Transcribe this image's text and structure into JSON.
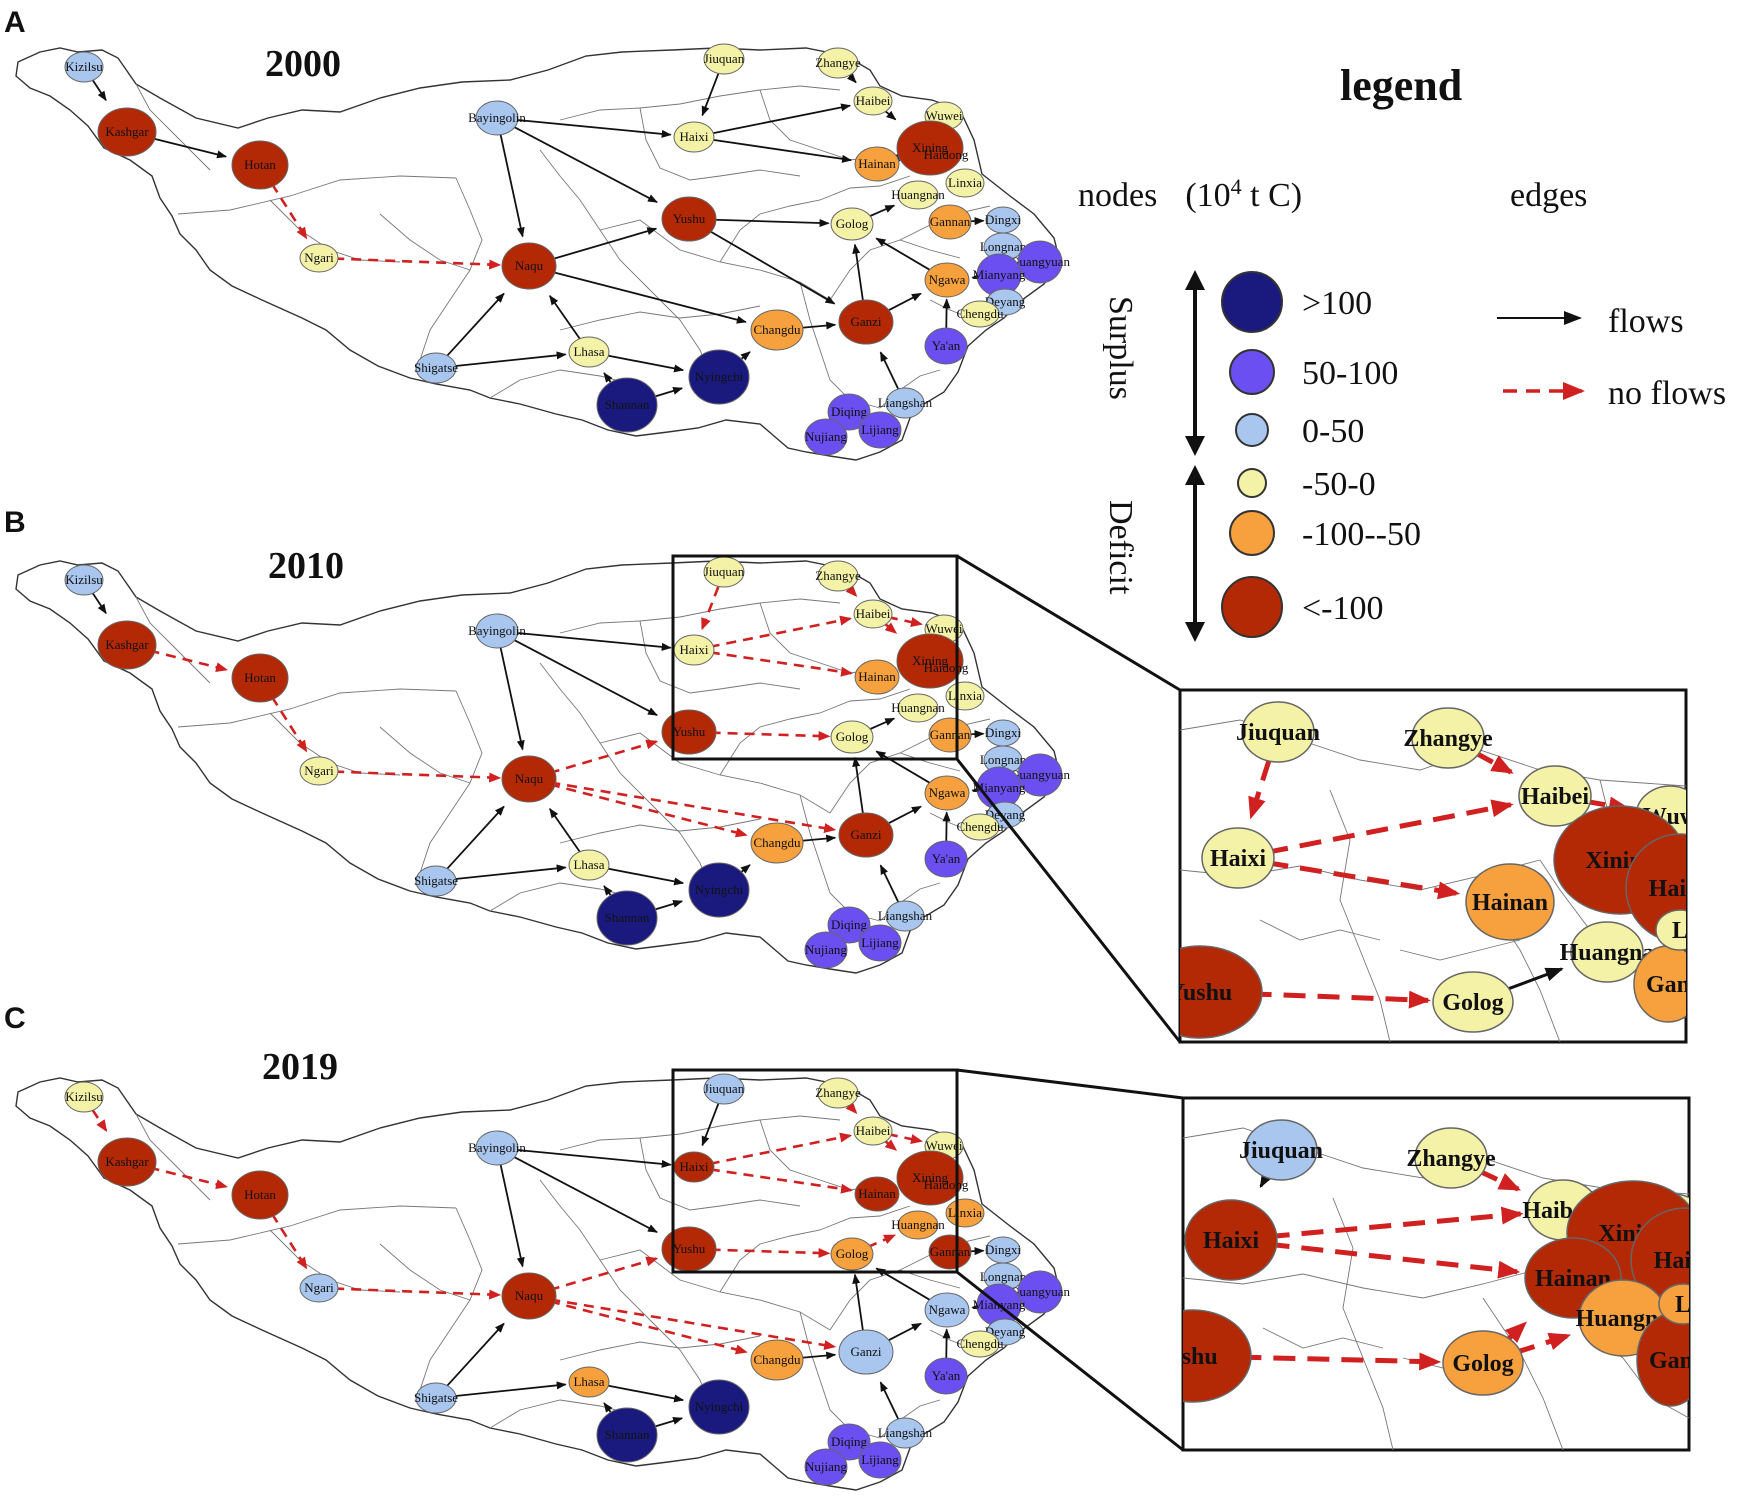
{
  "colors": {
    "gt100": "#1a1a7e",
    "c50_100": "#6b4ff0",
    "c0_50": "#a8c6ee",
    "cneg50_0": "#f3f2a6",
    "cneg100_50": "#f6a03e",
    "lt_neg100": "#b32805",
    "flow": "#111111",
    "noflow": "#d02020"
  },
  "legend": {
    "title": "legend",
    "nodes_label": "nodes",
    "unit_open": "(10",
    "unit_exp": "4",
    "unit_close": " t C)",
    "edges_label": "edges",
    "surplus": "Surplus",
    "deficit": "Deficit",
    "classes": [
      {
        "label": ">100",
        "color": "gt100"
      },
      {
        "label": "50-100",
        "color": "c50_100"
      },
      {
        "label": "0-50",
        "color": "c0_50"
      },
      {
        "label": "-50-0",
        "color": "cneg50_0"
      },
      {
        "label": "-100--50",
        "color": "cneg100_50"
      },
      {
        "label": "<-100",
        "color": "lt_neg100"
      }
    ],
    "flows": "flows",
    "no_flows": "no flows"
  },
  "panels": [
    {
      "letter": "A",
      "year": "2000",
      "nodes": {
        "Kizilsu": "c0_50",
        "Kashgar": "lt_neg100",
        "Hotan": "lt_neg100",
        "Ngari": "cneg50_0",
        "Bayingolin": "c0_50",
        "Naqu": "lt_neg100",
        "Shigatse": "c0_50",
        "Lhasa": "cneg50_0",
        "Shannan": "gt100",
        "Nyingchi": "gt100",
        "Changdu": "cneg100_50",
        "Yushu": "lt_neg100",
        "Ganzi": "lt_neg100",
        "Jiuquan": "cneg50_0",
        "Zhangye": "cneg50_0",
        "Haixi": "cneg50_0",
        "Haibei": "cneg50_0",
        "Wuwei": "cneg50_0",
        "Xining": "lt_neg100",
        "Hainan": "cneg100_50",
        "Linxia": "cneg50_0",
        "Huangnan": "cneg50_0",
        "Golog": "cneg50_0",
        "Gannan": "cneg100_50",
        "Dingxi": "c0_50",
        "Longnan": "c0_50",
        "Guangyuan": "c50_100",
        "Mianyang": "c50_100",
        "Ngawa": "cneg100_50",
        "Deyang": "c0_50",
        "Chengdu": "cneg50_0",
        "Ya'an": "c50_100",
        "Liangshan": "c0_50",
        "Diqing": "c50_100",
        "Nujiang": "c50_100",
        "Lijiang": "c50_100"
      },
      "flows": [
        [
          "Kizilsu",
          "Kashgar"
        ],
        [
          "Kashgar",
          "Hotan"
        ],
        [
          "Bayingolin",
          "Naqu"
        ],
        [
          "Bayingolin",
          "Haixi"
        ],
        [
          "Bayingolin",
          "Yushu"
        ],
        [
          "Shigatse",
          "Naqu"
        ],
        [
          "Shigatse",
          "Lhasa"
        ],
        [
          "Lhasa",
          "Naqu"
        ],
        [
          "Lhasa",
          "Nyingchi"
        ],
        [
          "Shannan",
          "Lhasa"
        ],
        [
          "Shannan",
          "Nyingchi"
        ],
        [
          "Nyingchi",
          "Changdu"
        ],
        [
          "Naqu",
          "Yushu"
        ],
        [
          "Naqu",
          "Changdu"
        ],
        [
          "Changdu",
          "Ganzi"
        ],
        [
          "Yushu",
          "Golog"
        ],
        [
          "Yushu",
          "Ganzi"
        ],
        [
          "Jiuquan",
          "Haixi"
        ],
        [
          "Zhangye",
          "Haibei"
        ],
        [
          "Haixi",
          "Haibei"
        ],
        [
          "Haixi",
          "Hainan"
        ],
        [
          "Ganzi",
          "Golog"
        ],
        [
          "Ganzi",
          "Ngawa"
        ],
        [
          "Liangshan",
          "Ganzi"
        ],
        [
          "Ya'an",
          "Ngawa"
        ],
        [
          "Ngawa",
          "Golog"
        ],
        [
          "Golog",
          "Huangnan"
        ],
        [
          "Gannan",
          "Dingxi"
        ],
        [
          "Mianyang",
          "Ngawa"
        ],
        [
          "Haibei",
          "Xining"
        ],
        [
          "Hainan",
          "Xining"
        ]
      ],
      "noflows": [
        [
          "Hotan",
          "Ngari"
        ],
        [
          "Ngari",
          "Naqu"
        ]
      ]
    },
    {
      "letter": "B",
      "year": "2010",
      "nodes": {
        "Kizilsu": "c0_50",
        "Kashgar": "lt_neg100",
        "Hotan": "lt_neg100",
        "Ngari": "cneg50_0",
        "Bayingolin": "c0_50",
        "Naqu": "lt_neg100",
        "Shigatse": "c0_50",
        "Lhasa": "cneg50_0",
        "Shannan": "gt100",
        "Nyingchi": "gt100",
        "Changdu": "cneg100_50",
        "Yushu": "lt_neg100",
        "Ganzi": "lt_neg100",
        "Jiuquan": "cneg50_0",
        "Zhangye": "cneg50_0",
        "Haixi": "cneg50_0",
        "Haibei": "cneg50_0",
        "Wuwei": "cneg50_0",
        "Xining": "lt_neg100",
        "Hainan": "cneg100_50",
        "Linxia": "cneg50_0",
        "Huangnan": "cneg50_0",
        "Golog": "cneg50_0",
        "Gannan": "cneg100_50",
        "Dingxi": "c0_50",
        "Longnan": "c0_50",
        "Guangyuan": "c50_100",
        "Mianyang": "c50_100",
        "Ngawa": "cneg100_50",
        "Deyang": "c0_50",
        "Chengdu": "cneg50_0",
        "Ya'an": "c50_100",
        "Liangshan": "c0_50",
        "Diqing": "c50_100",
        "Nujiang": "c50_100",
        "Lijiang": "c50_100"
      },
      "flows": [
        [
          "Kizilsu",
          "Kashgar"
        ],
        [
          "Bayingolin",
          "Naqu"
        ],
        [
          "Bayingolin",
          "Haixi"
        ],
        [
          "Bayingolin",
          "Yushu"
        ],
        [
          "Shigatse",
          "Naqu"
        ],
        [
          "Shigatse",
          "Lhasa"
        ],
        [
          "Lhasa",
          "Naqu"
        ],
        [
          "Lhasa",
          "Nyingchi"
        ],
        [
          "Shannan",
          "Lhasa"
        ],
        [
          "Shannan",
          "Nyingchi"
        ],
        [
          "Nyingchi",
          "Changdu"
        ],
        [
          "Changdu",
          "Ganzi"
        ],
        [
          "Ganzi",
          "Golog"
        ],
        [
          "Ganzi",
          "Ngawa"
        ],
        [
          "Liangshan",
          "Ganzi"
        ],
        [
          "Ya'an",
          "Ngawa"
        ],
        [
          "Ngawa",
          "Golog"
        ],
        [
          "Golog",
          "Huangnan"
        ],
        [
          "Gannan",
          "Dingxi"
        ],
        [
          "Mianyang",
          "Ngawa"
        ]
      ],
      "noflows": [
        [
          "Kashgar",
          "Hotan"
        ],
        [
          "Hotan",
          "Ngari"
        ],
        [
          "Ngari",
          "Naqu"
        ],
        [
          "Naqu",
          "Yushu"
        ],
        [
          "Naqu",
          "Changdu"
        ],
        [
          "Naqu",
          "Ganzi"
        ],
        [
          "Yushu",
          "Golog"
        ],
        [
          "Jiuquan",
          "Haixi"
        ],
        [
          "Zhangye",
          "Haibei"
        ],
        [
          "Haixi",
          "Haibei"
        ],
        [
          "Haixi",
          "Hainan"
        ],
        [
          "Haibei",
          "Xining"
        ],
        [
          "Haibei",
          "Wuwei"
        ]
      ]
    },
    {
      "letter": "C",
      "year": "2019",
      "nodes": {
        "Kizilsu": "cneg50_0",
        "Kashgar": "lt_neg100",
        "Hotan": "lt_neg100",
        "Ngari": "c0_50",
        "Bayingolin": "c0_50",
        "Naqu": "lt_neg100",
        "Shigatse": "c0_50",
        "Lhasa": "cneg100_50",
        "Shannan": "gt100",
        "Nyingchi": "gt100",
        "Changdu": "cneg100_50",
        "Yushu": "lt_neg100",
        "Ganzi": "c0_50",
        "Jiuquan": "c0_50",
        "Zhangye": "cneg50_0",
        "Haixi": "lt_neg100",
        "Haibei": "cneg50_0",
        "Wuwei": "cneg50_0",
        "Xining": "lt_neg100",
        "Hainan": "lt_neg100",
        "Linxia": "cneg100_50",
        "Huangnan": "cneg100_50",
        "Golog": "cneg100_50",
        "Gannan": "lt_neg100",
        "Dingxi": "c0_50",
        "Longnan": "c0_50",
        "Guangyuan": "c50_100",
        "Mianyang": "c50_100",
        "Ngawa": "c0_50",
        "Deyang": "c0_50",
        "Chengdu": "cneg50_0",
        "Ya'an": "c50_100",
        "Liangshan": "c0_50",
        "Diqing": "c50_100",
        "Nujiang": "c50_100",
        "Lijiang": "c50_100"
      },
      "flows": [
        [
          "Bayingolin",
          "Naqu"
        ],
        [
          "Bayingolin",
          "Haixi"
        ],
        [
          "Bayingolin",
          "Yushu"
        ],
        [
          "Jiuquan",
          "Haixi"
        ],
        [
          "Shigatse",
          "Naqu"
        ],
        [
          "Shigatse",
          "Lhasa"
        ],
        [
          "Lhasa",
          "Nyingchi"
        ],
        [
          "Shannan",
          "Lhasa"
        ],
        [
          "Shannan",
          "Nyingchi"
        ],
        [
          "Changdu",
          "Ganzi"
        ],
        [
          "Ganzi",
          "Golog"
        ],
        [
          "Ganzi",
          "Ngawa"
        ],
        [
          "Liangshan",
          "Ganzi"
        ],
        [
          "Ya'an",
          "Ngawa"
        ],
        [
          "Ngawa",
          "Golog"
        ],
        [
          "Gannan",
          "Dingxi"
        ],
        [
          "Mianyang",
          "Ngawa"
        ]
      ],
      "noflows": [
        [
          "Kizilsu",
          "Kashgar"
        ],
        [
          "Kashgar",
          "Hotan"
        ],
        [
          "Hotan",
          "Ngari"
        ],
        [
          "Ngari",
          "Naqu"
        ],
        [
          "Naqu",
          "Yushu"
        ],
        [
          "Naqu",
          "Changdu"
        ],
        [
          "Naqu",
          "Ganzi"
        ],
        [
          "Yushu",
          "Golog"
        ],
        [
          "Zhangye",
          "Haibei"
        ],
        [
          "Haixi",
          "Haibei"
        ],
        [
          "Haixi",
          "Hainan"
        ],
        [
          "Haibei",
          "Xining"
        ],
        [
          "Haibei",
          "Wuwei"
        ],
        [
          "Golog",
          "Huangnan"
        ]
      ]
    }
  ],
  "zooms": [
    {
      "nodes": {
        "Jiuquan": "cneg50_0",
        "Zhangye": "cneg50_0",
        "Haixi": "cneg50_0",
        "Haibei": "cneg50_0",
        "Wuwei": "cneg50_0",
        "Xining": "lt_neg100",
        "Haidong": "lt_neg100",
        "Hainan": "cneg100_50",
        "Yushu": "lt_neg100",
        "Golog": "cneg50_0",
        "Huangnan": "cneg50_0",
        "Gannan": "cneg100_50",
        "Linxia": "cneg50_0"
      },
      "labels": {
        "Jiuquan": "Jiuquan",
        "Zhangye": "Zhangye",
        "Haixi": "Haixi",
        "Haibei": "Haibei",
        "Wuwei": "Wuw",
        "Xining": "Xining",
        "Haidong": "Haido",
        "Hainan": "Hainan",
        "Yushu": "Yushu",
        "Golog": "Golog",
        "Huangnan": "Huangna",
        "Gannan": "Gan",
        "Linxia": "L"
      }
    },
    {
      "nodes": {
        "Jiuquan": "c0_50",
        "Zhangye": "cneg50_0",
        "Haixi": "lt_neg100",
        "Haibei": "cneg50_0",
        "Wuwei": "cneg50_0",
        "Xining": "lt_neg100",
        "Haidong": "lt_neg100",
        "Hainan": "lt_neg100",
        "Yushu": "lt_neg100",
        "Golog": "cneg100_50",
        "Huangnan": "cneg100_50",
        "Gannan": "lt_neg100",
        "Linxia": "cneg100_50"
      },
      "labels": {
        "Jiuquan": "Jiuquan",
        "Zhangye": "Zhangye",
        "Haixi": "Haixi",
        "Haibei": "Haibers",
        "Wuwei": "Wuw",
        "Xining": "Xining",
        "Haidong": "Haido",
        "Hainan": "Hainan",
        "Yushu": "ushu",
        "Golog": "Golog",
        "Huangnan": "Huangna",
        "Gannan": "Gan",
        "Linxia": "L"
      }
    }
  ]
}
